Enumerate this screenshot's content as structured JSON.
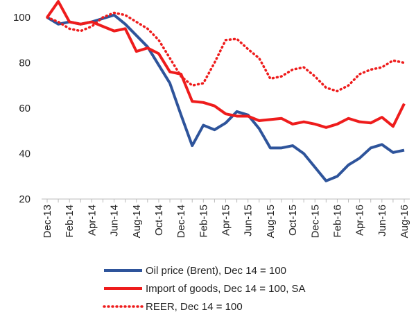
{
  "chart_data": {
    "type": "line",
    "categories": [
      "Dec-13",
      null,
      "Feb-14",
      null,
      "Apr-14",
      null,
      "Jun-14",
      null,
      "Aug-14",
      null,
      "Oct-14",
      null,
      "Dec-14",
      null,
      "Feb-15",
      null,
      "Apr-15",
      null,
      "Jun-15",
      null,
      "Aug-15",
      null,
      "Oct-15",
      null,
      "Dec-15",
      null,
      "Feb-16",
      null,
      "Apr-16",
      null,
      "Jun-16",
      null,
      "Aug-16"
    ],
    "series": [
      {
        "name": "Oil price (Brent), Dec 14 = 100",
        "color": "#2e549b",
        "style": "solid",
        "values": [
          100,
          97,
          98,
          97,
          98,
          99.5,
          101,
          97,
          92,
          87,
          79,
          71,
          57,
          43.5,
          52.5,
          50.5,
          53.5,
          58.5,
          57,
          51,
          42.5,
          42.5,
          43.5,
          40,
          34,
          28,
          30,
          35,
          38,
          42.5,
          44,
          40.5,
          41.5
        ]
      },
      {
        "name": "Import of goods, Dec 14 = 100, SA",
        "color": "#ee1c1c",
        "style": "solid",
        "values": [
          100,
          107,
          98,
          97,
          98,
          96,
          94,
          95,
          85,
          86.5,
          84,
          76,
          75,
          63,
          62.5,
          61,
          57.5,
          56.5,
          56.5,
          54.5,
          55,
          55.5,
          53,
          54,
          53,
          51.5,
          53,
          55.5,
          54,
          53.5,
          56,
          52,
          62
        ]
      },
      {
        "name": "REER, Dec 14 = 100",
        "color": "#ee1c1c",
        "style": "dotted",
        "values": [
          100,
          98,
          95,
          94,
          96,
          100,
          102,
          101,
          98,
          95,
          90,
          82,
          74,
          70,
          71,
          80,
          90,
          90.5,
          86,
          82,
          73,
          74,
          77,
          78,
          74,
          69,
          67.5,
          70,
          75,
          77,
          78,
          81,
          80
        ]
      }
    ],
    "ylim": [
      20,
      100
    ],
    "yticks": [
      20,
      40,
      60,
      80,
      100
    ],
    "grid": false,
    "legend": "bottom"
  }
}
